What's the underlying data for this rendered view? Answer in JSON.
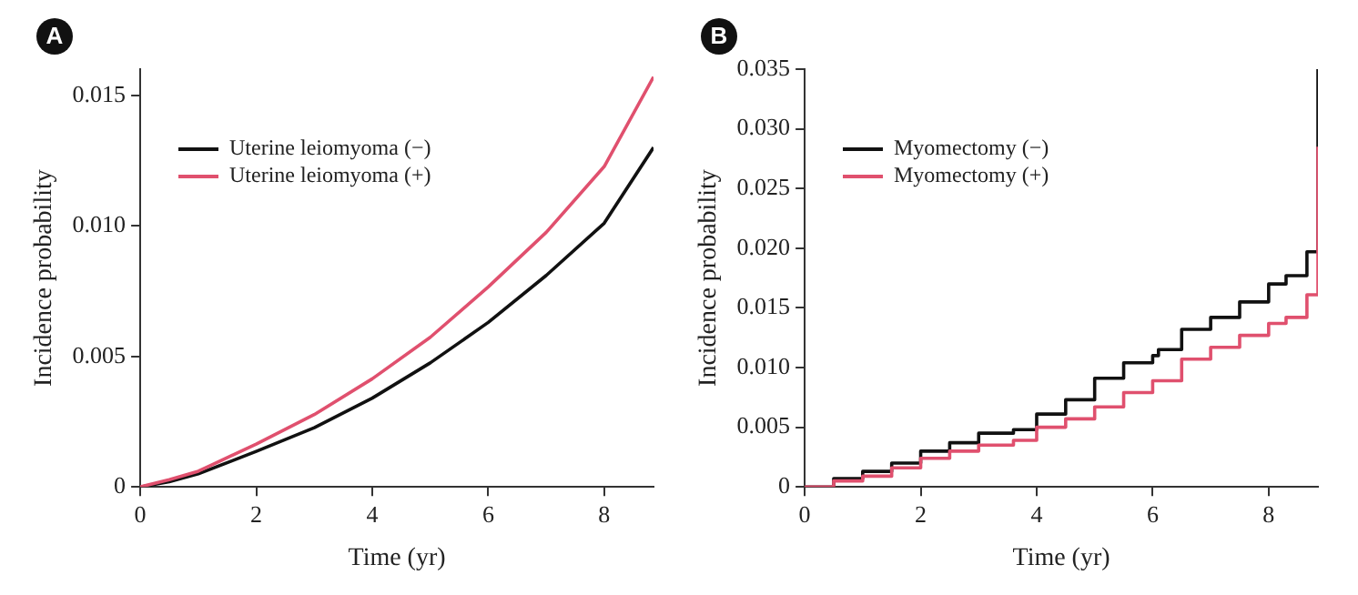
{
  "chart_data": [
    {
      "type": "line",
      "title": "A",
      "xlabel": "Time (yr)",
      "ylabel": "Incidence probability",
      "xlim": [
        0,
        8.85
      ],
      "xticks": [
        0,
        2,
        4,
        6,
        8
      ],
      "ylim": [
        0,
        0.016
      ],
      "yticks": [
        0,
        0.005,
        {
          "value": 0.01,
          "label": "0.010"
        },
        0.015
      ],
      "legend": "top left",
      "marker": "none",
      "line_style": "solid",
      "series": [
        {
          "name": "Uterine leiomyoma (−)",
          "color": "#111111",
          "x": [
            0,
            0.5,
            1,
            2,
            3,
            4,
            5,
            6,
            7,
            8,
            8.85
          ],
          "values": [
            0,
            0.0002,
            0.0005,
            0.00136,
            0.00227,
            0.0034,
            0.00475,
            0.0063,
            0.0081,
            0.0101,
            0.013
          ]
        },
        {
          "name": "Uterine leiomyoma (+)",
          "color": "#e0506e",
          "x": [
            0,
            0.5,
            1,
            2,
            3,
            4,
            5,
            6,
            7,
            8,
            8.85
          ],
          "values": [
            0,
            0.00028,
            0.0006,
            0.00164,
            0.00277,
            0.00414,
            0.00573,
            0.00766,
            0.00975,
            0.01227,
            0.0157
          ]
        }
      ]
    },
    {
      "type": "step",
      "title": "B",
      "xlabel": "Time (yr)",
      "ylabel": "Incidence probability",
      "xlim": [
        0,
        8.85
      ],
      "xticks": [
        0,
        2,
        4,
        6,
        8
      ],
      "ylim": [
        0,
        0.035
      ],
      "yticks": [
        0,
        0.005,
        {
          "value": 0.01,
          "label": "0.010"
        },
        0.015,
        {
          "value": 0.02,
          "label": "0.020"
        },
        0.025,
        {
          "value": 0.03,
          "label": "0.030"
        },
        0.035
      ],
      "legend": "top left",
      "marker": "none",
      "line_style": "solid",
      "series": [
        {
          "name": "Myomectomy (−)",
          "color": "#111111",
          "x": [
            0,
            0.5,
            1,
            1.5,
            2,
            2.5,
            3,
            3.6,
            4,
            4.5,
            5,
            5.5,
            6,
            6.1,
            6.5,
            7,
            7.5,
            8,
            8.3,
            8.65,
            8.66,
            8.84,
            8.85
          ],
          "values": [
            0,
            0.0007,
            0.0013,
            0.002,
            0.003,
            0.0037,
            0.0045,
            0.0048,
            0.0061,
            0.0073,
            0.0091,
            0.0104,
            0.011,
            0.0115,
            0.0132,
            0.0142,
            0.0155,
            0.017,
            0.0177,
            0.0177,
            0.0197,
            0.0197,
            0.035
          ]
        },
        {
          "name": "Myomectomy (+)",
          "color": "#e0506e",
          "x": [
            0,
            0.5,
            1,
            1.5,
            2,
            2.5,
            3,
            3.6,
            4,
            4.5,
            5,
            5.5,
            6,
            6.5,
            7,
            7.5,
            8,
            8.3,
            8.65,
            8.66,
            8.84,
            8.85
          ],
          "values": [
            0,
            0.0005,
            0.0009,
            0.0016,
            0.0024,
            0.003,
            0.0035,
            0.0039,
            0.005,
            0.0057,
            0.0067,
            0.0079,
            0.0089,
            0.0107,
            0.0117,
            0.0127,
            0.0137,
            0.0142,
            0.0142,
            0.0161,
            0.0161,
            0.0285
          ]
        }
      ]
    }
  ]
}
